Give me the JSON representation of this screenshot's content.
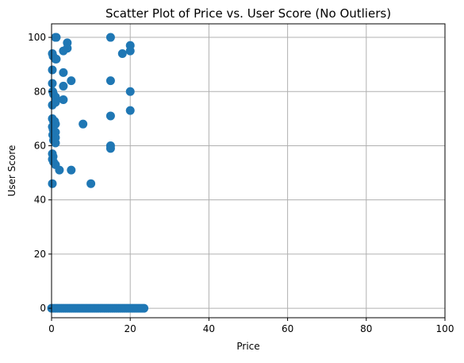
{
  "chart_data": {
    "type": "scatter",
    "title": "Scatter Plot of Price vs. User Score (No Outliers)",
    "xlabel": "Price",
    "ylabel": "User Score",
    "xlim": [
      0,
      100
    ],
    "ylim": [
      -3.5,
      105
    ],
    "x_ticks": [
      0,
      20,
      40,
      60,
      80,
      100
    ],
    "y_ticks": [
      0,
      20,
      40,
      60,
      80,
      100
    ],
    "grid": true,
    "marker_color": "#1f77b4",
    "series": [
      {
        "points": [
          [
            1,
            100
          ],
          [
            1.2,
            100
          ],
          [
            15,
            100
          ],
          [
            20,
            97
          ],
          [
            20,
            95
          ],
          [
            4,
            98
          ],
          [
            4,
            96
          ],
          [
            3,
            95
          ],
          [
            0.2,
            94
          ],
          [
            0.4,
            93
          ],
          [
            1,
            92
          ],
          [
            1.2,
            92
          ],
          [
            18,
            94
          ],
          [
            0.2,
            88
          ],
          [
            3,
            87
          ],
          [
            5,
            84
          ],
          [
            15,
            84
          ],
          [
            0.2,
            83
          ],
          [
            3,
            82
          ],
          [
            20,
            80
          ],
          [
            0.3,
            80
          ],
          [
            0.5,
            79
          ],
          [
            1,
            78
          ],
          [
            1.2,
            77
          ],
          [
            1,
            76
          ],
          [
            3,
            77
          ],
          [
            0.2,
            75
          ],
          [
            20,
            73
          ],
          [
            15,
            71
          ],
          [
            0.2,
            70
          ],
          [
            0.5,
            69
          ],
          [
            0.8,
            69
          ],
          [
            1,
            68
          ],
          [
            8,
            68
          ],
          [
            0.2,
            67
          ],
          [
            0.4,
            66
          ],
          [
            1,
            65
          ],
          [
            0.3,
            64
          ],
          [
            1,
            63
          ],
          [
            0.5,
            62
          ],
          [
            1,
            61
          ],
          [
            15,
            60
          ],
          [
            15,
            59
          ],
          [
            0.2,
            57
          ],
          [
            0.4,
            56
          ],
          [
            0.2,
            55
          ],
          [
            0.5,
            54
          ],
          [
            1,
            53
          ],
          [
            2,
            51
          ],
          [
            5,
            51
          ],
          [
            0.2,
            46
          ],
          [
            10,
            46
          ],
          [
            0,
            0
          ],
          [
            0.5,
            0
          ],
          [
            1,
            0
          ],
          [
            1.5,
            0
          ],
          [
            2,
            0
          ],
          [
            2.5,
            0
          ],
          [
            3,
            0
          ],
          [
            3.5,
            0
          ],
          [
            4,
            0
          ],
          [
            4.5,
            0
          ],
          [
            5,
            0
          ],
          [
            5.5,
            0
          ],
          [
            6,
            0
          ],
          [
            6.5,
            0
          ],
          [
            7,
            0
          ],
          [
            7.5,
            0
          ],
          [
            8,
            0
          ],
          [
            8.5,
            0
          ],
          [
            9,
            0
          ],
          [
            9.5,
            0
          ],
          [
            10,
            0
          ],
          [
            10.5,
            0
          ],
          [
            11,
            0
          ],
          [
            11.5,
            0
          ],
          [
            12,
            0
          ],
          [
            12.5,
            0
          ],
          [
            13,
            0
          ],
          [
            13.5,
            0
          ],
          [
            14,
            0
          ],
          [
            14.5,
            0
          ],
          [
            15,
            0
          ],
          [
            15.5,
            0
          ],
          [
            16,
            0
          ],
          [
            16.5,
            0
          ],
          [
            17,
            0
          ],
          [
            17.5,
            0
          ],
          [
            18,
            0
          ],
          [
            18.5,
            0
          ],
          [
            19,
            0
          ],
          [
            19.5,
            0
          ],
          [
            20,
            0
          ],
          [
            20.5,
            0
          ],
          [
            21,
            0
          ],
          [
            21.5,
            0
          ],
          [
            22,
            0
          ],
          [
            22.5,
            0
          ],
          [
            23,
            0
          ],
          [
            23.5,
            0
          ]
        ]
      }
    ]
  }
}
